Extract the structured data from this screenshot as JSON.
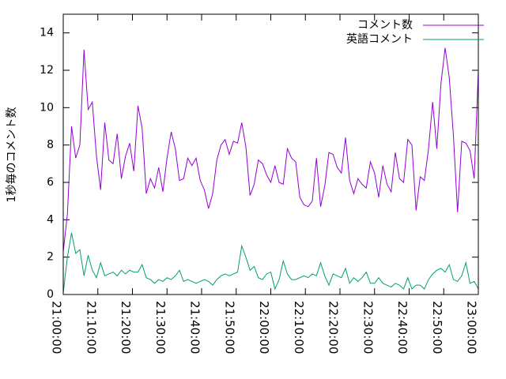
{
  "chart_data": {
    "type": "line",
    "y_label": "1秒毎のコメント数",
    "x": [
      0,
      1.2,
      2.4,
      3.6,
      4.8,
      6,
      7.2,
      8.4,
      9.6,
      10.8,
      12,
      13.2,
      14.4,
      15.6,
      16.8,
      18,
      19.2,
      20.4,
      21.6,
      22.8,
      24,
      25.2,
      26.4,
      27.6,
      28.8,
      30,
      31.2,
      32.4,
      33.6,
      34.8,
      36,
      37.2,
      38.4,
      39.6,
      40.8,
      42,
      43.2,
      44.4,
      45.6,
      46.8,
      48,
      49.2,
      50.4,
      51.6,
      52.8,
      54,
      55.2,
      56.4,
      57.6,
      58.8,
      60,
      61.2,
      62.4,
      63.6,
      64.8,
      66,
      67.2,
      68.4,
      69.6,
      70.8,
      72,
      73.2,
      74.4,
      75.6,
      76.8,
      78,
      79.2,
      80.4,
      81.6,
      82.8,
      84,
      85.2,
      86.4,
      87.6,
      88.8,
      90,
      91.2,
      92.4,
      93.6,
      94.8,
      96,
      97.2,
      98.4,
      99.6,
      100.8,
      102,
      103.2,
      104.4,
      105.6,
      106.8,
      108,
      109.2,
      110.4,
      111.6,
      112.8,
      114,
      115.2,
      116.4,
      117.6,
      118.8,
      120
    ],
    "series": [
      {
        "name": "コメント数",
        "color": "#9400d3",
        "values": [
          2.3,
          4.3,
          9,
          7.3,
          8,
          13.1,
          9.9,
          10.3,
          7.4,
          5.6,
          9.2,
          7.2,
          7,
          8.6,
          6.2,
          7.4,
          8.1,
          6.6,
          10.1,
          8.9,
          5.4,
          6.2,
          5.7,
          6.8,
          5.5,
          7.3,
          8.7,
          7.8,
          6.1,
          6.2,
          7.3,
          6.9,
          7.3,
          6.1,
          5.6,
          4.6,
          5.4,
          7.2,
          8,
          8.3,
          7.5,
          8.2,
          8.1,
          9.2,
          7.9,
          5.3,
          5.9,
          7.2,
          7,
          6.4,
          6,
          6.9,
          6,
          5.9,
          7.8,
          7.3,
          7.1,
          5.2,
          4.8,
          4.7,
          5,
          7.3,
          4.7,
          5.8,
          7.6,
          7.5,
          6.8,
          6.5,
          8.4,
          6.1,
          5.4,
          6.2,
          5.9,
          5.7,
          7.1,
          6.5,
          5.2,
          6.9,
          5.9,
          5.5,
          7.6,
          6.2,
          6,
          8.3,
          8,
          4.5,
          6.3,
          6.1,
          7.8,
          10.3,
          7.8,
          11.3,
          13.2,
          11.6,
          8.5,
          4.4,
          8.2,
          8.1,
          7.7,
          6.2,
          12
        ]
      },
      {
        "name": "英語コメント",
        "color": "#009e73",
        "values": [
          0.1,
          2,
          3.3,
          2.2,
          2.4,
          1,
          2.1,
          1.3,
          0.9,
          1.7,
          1,
          1.1,
          1.2,
          1,
          1.3,
          1.1,
          1.3,
          1.2,
          1.2,
          1.6,
          0.9,
          0.8,
          0.6,
          0.8,
          0.7,
          0.9,
          0.8,
          1,
          1.3,
          0.7,
          0.8,
          0.7,
          0.6,
          0.7,
          0.8,
          0.7,
          0.5,
          0.8,
          1,
          1.1,
          1,
          1.1,
          1.2,
          2.6,
          2,
          1.3,
          1.5,
          0.9,
          0.8,
          1.1,
          1.2,
          0.3,
          0.8,
          1.8,
          1.1,
          0.8,
          0.8,
          0.9,
          1,
          0.9,
          1.1,
          1,
          1.7,
          1,
          0.5,
          1.1,
          1,
          0.9,
          1.4,
          0.6,
          0.9,
          0.7,
          0.9,
          1.2,
          0.6,
          0.6,
          0.9,
          0.6,
          0.5,
          0.4,
          0.6,
          0.5,
          0.3,
          0.9,
          0.3,
          0.5,
          0.5,
          0.3,
          0.8,
          1.1,
          1.3,
          1.4,
          1.2,
          1.6,
          0.8,
          0.7,
          1,
          1.7,
          0.6,
          0.7,
          0.3
        ]
      }
    ],
    "xlim": [
      0,
      120
    ],
    "xticks": [
      {
        "value": 0,
        "label": "21:00:00"
      },
      {
        "value": 10,
        "label": "21:10:00"
      },
      {
        "value": 20,
        "label": "21:20:00"
      },
      {
        "value": 30,
        "label": "21:30:00"
      },
      {
        "value": 40,
        "label": "21:40:00"
      },
      {
        "value": 50,
        "label": "21:50:00"
      },
      {
        "value": 60,
        "label": "22:00:00"
      },
      {
        "value": 70,
        "label": "22:10:00"
      },
      {
        "value": 80,
        "label": "22:20:00"
      },
      {
        "value": 90,
        "label": "22:30:00"
      },
      {
        "value": 100,
        "label": "22:40:00"
      },
      {
        "value": 110,
        "label": "22:50:00"
      },
      {
        "value": 120,
        "label": "23:00:00"
      }
    ],
    "ylim": [
      0,
      15
    ],
    "yticks": [
      0,
      2,
      4,
      6,
      8,
      10,
      12,
      14
    ],
    "legend": "top-right"
  }
}
